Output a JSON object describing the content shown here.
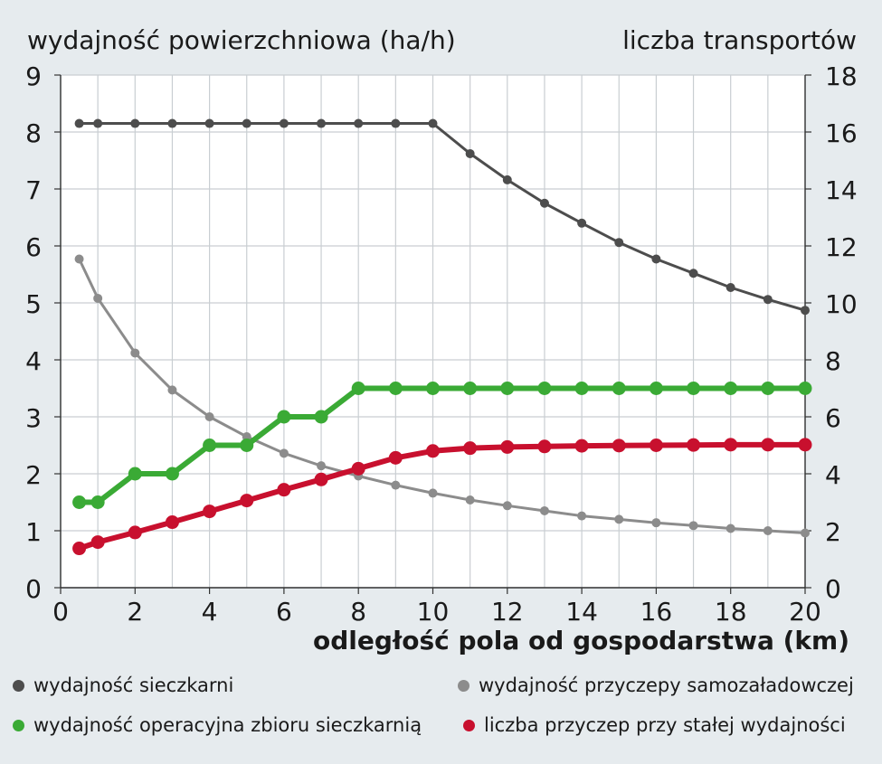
{
  "chart_data": {
    "type": "line",
    "title_left": "wydajność powierzchniowa (ha/h)",
    "title_right": "liczba transportów",
    "xlabel": "odległość pola od gospodarstwa (km)",
    "xlim": [
      0,
      20
    ],
    "x_ticks": [
      "0",
      "2",
      "4",
      "6",
      "8",
      "10",
      "12",
      "14",
      "16",
      "18",
      "20"
    ],
    "ylim": [
      0,
      9
    ],
    "y_ticks": [
      "0",
      "1",
      "2",
      "3",
      "4",
      "5",
      "6",
      "7",
      "8",
      "9"
    ],
    "y2lim": [
      0,
      18
    ],
    "y2_ticks": [
      "0",
      "2",
      "4",
      "6",
      "8",
      "10",
      "12",
      "14",
      "16",
      "18"
    ],
    "grid": true,
    "legend_position": "bottom",
    "series": [
      {
        "name": "wydajność sieczkarni",
        "color": "#4d4d4d",
        "axis": "left",
        "x": [
          0.5,
          1,
          2,
          3,
          4,
          5,
          6,
          7,
          8,
          9,
          10,
          11,
          12,
          13,
          14,
          15,
          16,
          17,
          18,
          19,
          20
        ],
        "y": [
          8.15,
          8.15,
          8.15,
          8.15,
          8.15,
          8.15,
          8.15,
          8.15,
          8.15,
          8.15,
          8.15,
          7.62,
          7.16,
          6.75,
          6.4,
          6.06,
          5.77,
          5.52,
          5.27,
          5.06,
          4.87
        ]
      },
      {
        "name": "wydajność przyczepy samozaładowczej",
        "color": "#8c8c8c",
        "axis": "left",
        "x": [
          0.5,
          1,
          2,
          3,
          4,
          5,
          6,
          7,
          8,
          9,
          10,
          11,
          12,
          13,
          14,
          15,
          16,
          17,
          18,
          19,
          20
        ],
        "y": [
          5.77,
          5.08,
          4.12,
          3.47,
          3.0,
          2.65,
          2.36,
          2.14,
          1.96,
          1.8,
          1.66,
          1.54,
          1.44,
          1.35,
          1.26,
          1.2,
          1.14,
          1.09,
          1.04,
          1.0,
          0.96
        ]
      },
      {
        "name": "wydajność operacyjna zbioru sieczkarnią",
        "color": "#3aaa35",
        "axis": "left",
        "x": [
          0.5,
          1,
          2,
          3,
          4,
          5,
          6,
          7,
          8,
          9,
          10,
          11,
          12,
          13,
          14,
          15,
          16,
          17,
          18,
          19,
          20
        ],
        "y": [
          1.5,
          1.5,
          2.0,
          2.0,
          2.5,
          2.5,
          3.0,
          3.0,
          3.5,
          3.5,
          3.5,
          3.5,
          3.5,
          3.5,
          3.5,
          3.5,
          3.5,
          3.5,
          3.5,
          3.5,
          3.5
        ]
      },
      {
        "name": "liczba przyczep przy stałej wydajności",
        "color": "#c8102e",
        "axis": "right",
        "x": [
          0.5,
          1,
          2,
          3,
          4,
          5,
          6,
          7,
          8,
          9,
          10,
          11,
          12,
          13,
          14,
          15,
          16,
          17,
          18,
          19,
          20
        ],
        "y": [
          1.38,
          1.6,
          1.94,
          2.3,
          2.68,
          3.06,
          3.44,
          3.8,
          4.18,
          4.56,
          4.8,
          4.9,
          4.94,
          4.96,
          4.98,
          4.99,
          5.0,
          5.01,
          5.02,
          5.02,
          5.02
        ]
      }
    ]
  }
}
